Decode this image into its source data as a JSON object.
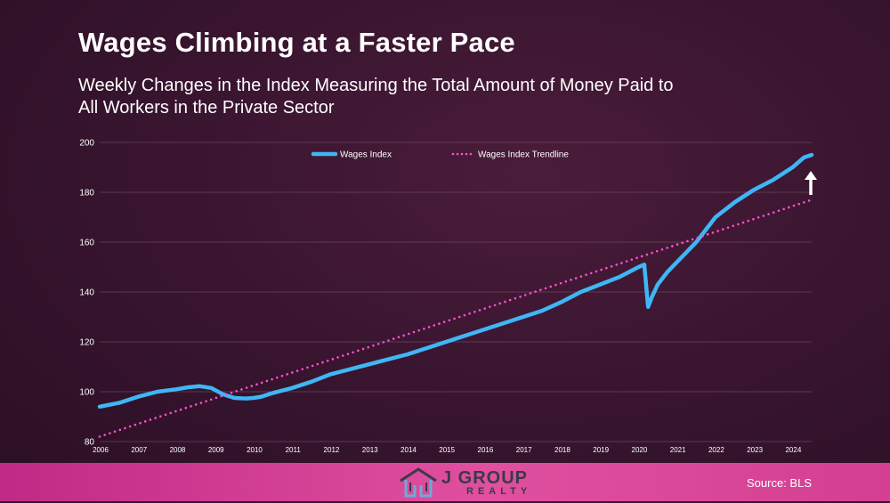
{
  "slide": {
    "title": "Wages Climbing at a Faster Pace",
    "subtitle": "Weekly Changes in the Index Measuring the Total Amount of Money Paid to All Workers in the Private Sector",
    "source": "Source: BLS",
    "logo_main": "J GROUP",
    "logo_sub": "REALTY"
  },
  "colors": {
    "series": "#3fb6f5",
    "trend": "#ff4fd0",
    "grid": "#7a5a70",
    "arrow": "#ffffff"
  },
  "chart_data": {
    "type": "line",
    "title": "Wages Climbing at a Faster Pace",
    "xlabel": "",
    "ylabel": "",
    "ylim": [
      80,
      200
    ],
    "yticks": [
      80,
      100,
      120,
      140,
      160,
      180,
      200
    ],
    "xlim": [
      2006,
      2024.5
    ],
    "xticks": [
      "2006",
      "2007",
      "2008",
      "2009",
      "2010",
      "2011",
      "2012",
      "2013",
      "2014",
      "2015",
      "2016",
      "2017",
      "2018",
      "2019",
      "2020",
      "2021",
      "2022",
      "2023",
      "2024"
    ],
    "grid": true,
    "legend": "top-center",
    "annotation": "up-arrow",
    "series": [
      {
        "name": "Wages Index",
        "style": "solid",
        "x": [
          2006.0,
          2006.5,
          2007.0,
          2007.5,
          2008.0,
          2008.3,
          2008.6,
          2008.9,
          2009.2,
          2009.5,
          2009.8,
          2010.0,
          2010.2,
          2010.5,
          2011.0,
          2011.5,
          2012.0,
          2012.5,
          2013.0,
          2013.5,
          2014.0,
          2014.5,
          2015.0,
          2015.5,
          2016.0,
          2016.5,
          2017.0,
          2017.5,
          2018.0,
          2018.5,
          2019.0,
          2019.5,
          2020.0,
          2020.15,
          2020.25,
          2020.35,
          2020.5,
          2020.75,
          2021.0,
          2021.5,
          2022.0,
          2022.5,
          2023.0,
          2023.5,
          2024.0,
          2024.3,
          2024.5
        ],
        "y": [
          94,
          95.5,
          98,
          100,
          101,
          101.8,
          102.2,
          101.5,
          99,
          97.5,
          97.3,
          97.5,
          98,
          99.5,
          101.5,
          104,
          107,
          109,
          111,
          113,
          115,
          117.5,
          120,
          122.5,
          125,
          127.5,
          130,
          132.5,
          136,
          140,
          143,
          146,
          150,
          151,
          134,
          138,
          143,
          148,
          152,
          160,
          170,
          176,
          181,
          185,
          190,
          194,
          195
        ]
      },
      {
        "name": "Wages Index Trendline",
        "style": "dotted",
        "x": [
          2006.0,
          2024.5
        ],
        "y": [
          82,
          177
        ]
      }
    ]
  }
}
